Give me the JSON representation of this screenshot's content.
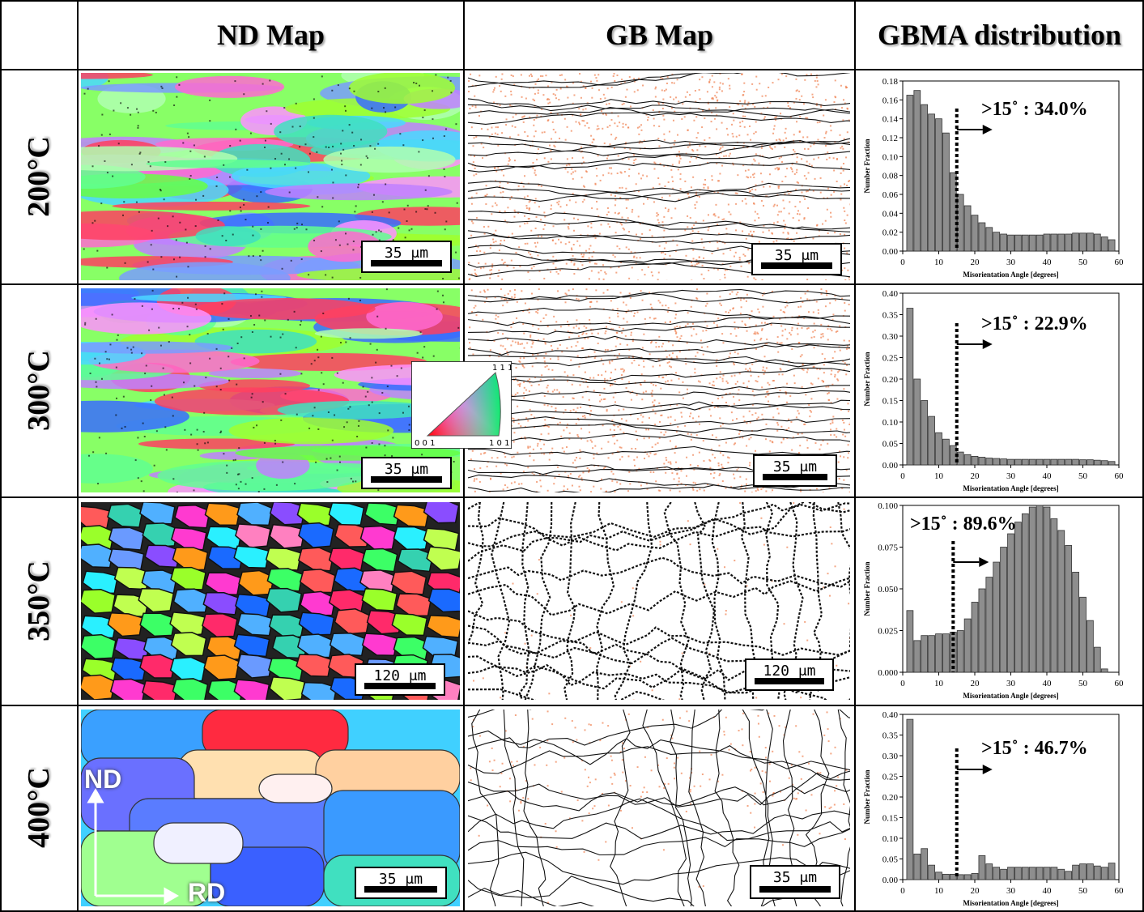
{
  "headers": {
    "nd_map": "ND Map",
    "gb_map": "GB Map",
    "gbma": "GBMA distribution"
  },
  "rows": [
    {
      "temp": "200°C",
      "nd_scale": "35 μm",
      "gb_scale": "35 μm",
      "annotation": ">15˚ : 34.0%"
    },
    {
      "temp": "300°C",
      "nd_scale": "35 μm",
      "gb_scale": "35 μm",
      "annotation": ">15˚ : 22.9%"
    },
    {
      "temp": "350°C",
      "nd_scale": "120 μm",
      "gb_scale": "120 μm",
      "annotation": ">15˚ : 89.6%"
    },
    {
      "temp": "400°C",
      "nd_scale": "35 μm",
      "gb_scale": "35 μm",
      "annotation": ">15˚ : 46.7%"
    }
  ],
  "ipf_legend": {
    "top": "1 1 1",
    "left": "0 0 1",
    "right": "1 0 1"
  },
  "axes_labels": {
    "nd": "ND",
    "rd": "RD"
  },
  "chart_data": [
    {
      "type": "bar",
      "xlabel": "Misorientation Angle [degrees]",
      "ylabel": "Number Fraction",
      "xlim": [
        0,
        60
      ],
      "ylim": [
        0,
        0.18
      ],
      "yticks": [
        "0.00",
        "0.02",
        "0.04",
        "0.06",
        "0.08",
        "0.10",
        "0.12",
        "0.14",
        "0.16",
        "0.18"
      ],
      "xticks": [
        "0",
        "10",
        "20",
        "30",
        "40",
        "50",
        "60"
      ],
      "threshold": 15,
      "x": [
        2,
        4,
        6,
        8,
        10,
        12,
        14,
        16,
        18,
        20,
        22,
        24,
        26,
        28,
        30,
        32,
        34,
        36,
        38,
        40,
        42,
        44,
        46,
        48,
        50,
        52,
        54,
        56,
        58
      ],
      "values": [
        0.165,
        0.17,
        0.155,
        0.145,
        0.14,
        0.125,
        0.083,
        0.06,
        0.048,
        0.038,
        0.03,
        0.025,
        0.02,
        0.018,
        0.017,
        0.017,
        0.017,
        0.017,
        0.017,
        0.018,
        0.018,
        0.018,
        0.018,
        0.019,
        0.019,
        0.019,
        0.018,
        0.015,
        0.012
      ]
    },
    {
      "type": "bar",
      "xlabel": "Misorientation Angle [degrees]",
      "ylabel": "Number Fraction",
      "xlim": [
        0,
        60
      ],
      "ylim": [
        0,
        0.4
      ],
      "yticks": [
        "0.00",
        "0.05",
        "0.10",
        "0.15",
        "0.20",
        "0.25",
        "0.30",
        "0.35",
        "0.40"
      ],
      "xticks": [
        "0",
        "10",
        "20",
        "30",
        "40",
        "50",
        "60"
      ],
      "threshold": 15,
      "x": [
        2,
        4,
        6,
        8,
        10,
        12,
        14,
        16,
        18,
        20,
        22,
        24,
        26,
        28,
        30,
        32,
        34,
        36,
        38,
        40,
        42,
        44,
        46,
        48,
        50,
        52,
        54,
        56,
        58
      ],
      "values": [
        0.365,
        0.2,
        0.15,
        0.113,
        0.075,
        0.06,
        0.045,
        0.03,
        0.024,
        0.02,
        0.018,
        0.016,
        0.015,
        0.014,
        0.013,
        0.013,
        0.013,
        0.013,
        0.013,
        0.013,
        0.013,
        0.013,
        0.013,
        0.013,
        0.012,
        0.012,
        0.011,
        0.01,
        0.008
      ]
    },
    {
      "type": "bar",
      "xlabel": "Misorientation Angle [degrees]",
      "ylabel": "Number Fraction",
      "xlim": [
        0,
        60
      ],
      "ylim": [
        0,
        0.1
      ],
      "yticks": [
        "0.000",
        "0.025",
        "0.050",
        "0.075",
        "0.100"
      ],
      "xticks": [
        "0",
        "10",
        "20",
        "30",
        "40",
        "50",
        "60"
      ],
      "threshold": 14,
      "x": [
        2,
        4,
        6,
        8,
        10,
        12,
        14,
        16,
        18,
        20,
        22,
        24,
        26,
        28,
        30,
        32,
        34,
        36,
        38,
        40,
        42,
        44,
        46,
        48,
        50,
        52,
        54,
        56
      ],
      "values": [
        0.037,
        0.019,
        0.022,
        0.022,
        0.023,
        0.023,
        0.024,
        0.025,
        0.032,
        0.042,
        0.05,
        0.057,
        0.066,
        0.075,
        0.083,
        0.09,
        0.095,
        0.099,
        0.1,
        0.099,
        0.092,
        0.085,
        0.076,
        0.06,
        0.045,
        0.031,
        0.015,
        0.002
      ]
    },
    {
      "type": "bar",
      "xlabel": "Misorientation Angle [degrees]",
      "ylabel": "Number Fraction",
      "xlim": [
        0,
        60
      ],
      "ylim": [
        0,
        0.4
      ],
      "yticks": [
        "0.00",
        "0.05",
        "0.10",
        "0.15",
        "0.20",
        "0.25",
        "0.30",
        "0.35",
        "0.40"
      ],
      "xticks": [
        "0",
        "10",
        "20",
        "30",
        "40",
        "50",
        "60"
      ],
      "threshold": 15,
      "x": [
        2,
        4,
        6,
        8,
        10,
        12,
        14,
        16,
        18,
        20,
        22,
        24,
        26,
        28,
        30,
        32,
        34,
        36,
        38,
        40,
        42,
        44,
        46,
        48,
        50,
        52,
        54,
        56,
        58
      ],
      "values": [
        0.388,
        0.062,
        0.075,
        0.035,
        0.018,
        0.013,
        0.013,
        0.012,
        0.012,
        0.015,
        0.058,
        0.038,
        0.03,
        0.025,
        0.03,
        0.03,
        0.03,
        0.03,
        0.03,
        0.03,
        0.03,
        0.025,
        0.02,
        0.035,
        0.038,
        0.038,
        0.033,
        0.03,
        0.04
      ]
    }
  ]
}
